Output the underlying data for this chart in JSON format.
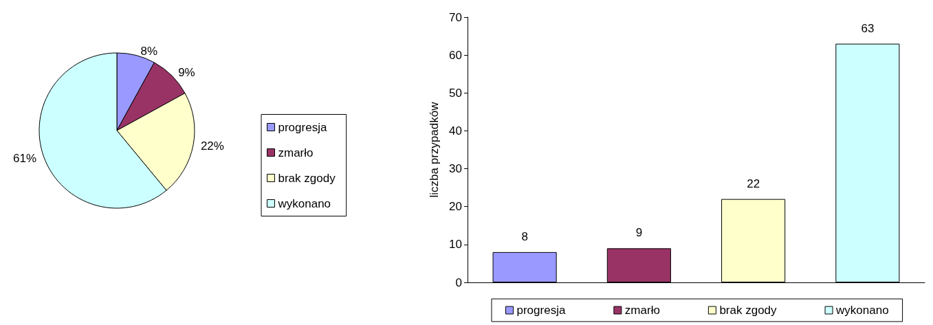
{
  "chart_data": [
    {
      "type": "pie",
      "categories": [
        "progresja",
        "zmarło",
        "brak zgody",
        "wykonano"
      ],
      "values": [
        8,
        9,
        22,
        61
      ],
      "colors": [
        "#9999ff",
        "#993366",
        "#ffffcc",
        "#ccffff"
      ],
      "value_labels": [
        "8%",
        "9%",
        "22%",
        "61%"
      ],
      "legend": "right"
    },
    {
      "type": "bar",
      "categories": [
        null,
        null,
        null,
        null
      ],
      "series": [
        {
          "name": "progresja",
          "color": "#9999ff",
          "values": [
            8,
            null,
            null,
            null
          ]
        },
        {
          "name": "zmarło",
          "color": "#993366",
          "values": [
            null,
            9,
            null,
            null
          ]
        },
        {
          "name": "brak zgody",
          "color": "#ffffcc",
          "values": [
            null,
            null,
            22,
            null
          ]
        },
        {
          "name": "wykonano",
          "color": "#ccffff",
          "values": [
            null,
            null,
            null,
            63
          ]
        }
      ],
      "ylabel": "liczba przypadków",
      "ylim": [
        0,
        70
      ],
      "yticks": [
        0,
        10,
        20,
        30,
        40,
        50,
        60,
        70
      ],
      "data_labels": true,
      "grid": false,
      "legend": "bottom"
    }
  ]
}
